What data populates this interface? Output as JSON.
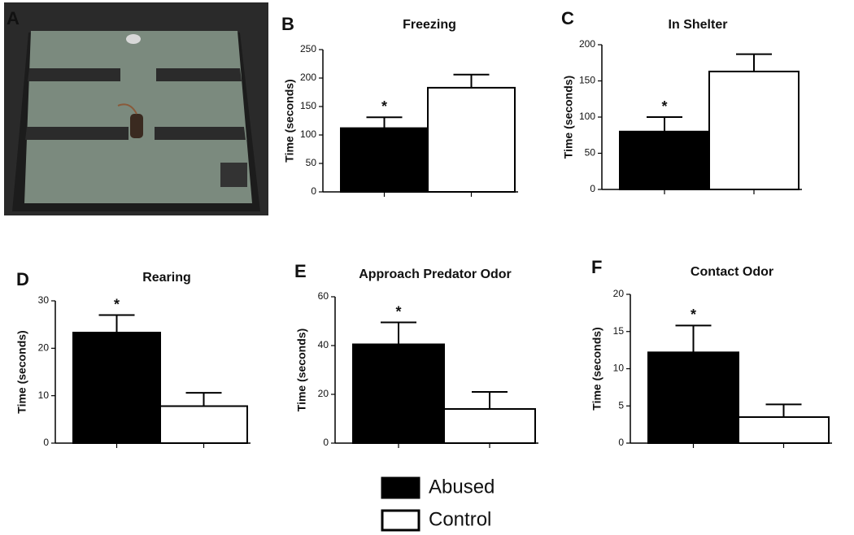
{
  "panel_a": {
    "label": "A"
  },
  "legend": [
    {
      "name": "Abused",
      "color": "#000000"
    },
    {
      "name": "Control",
      "color": "#ffffff"
    }
  ],
  "chart_data": [
    {
      "type": "bar",
      "panel": "B",
      "title": "Freezing",
      "ylabel": "Time (seconds)",
      "values": [
        112,
        183
      ],
      "errors": [
        19,
        23
      ],
      "value_annotations": [
        "*",
        null
      ],
      "ylim": [
        0,
        250
      ],
      "yticks": [
        0,
        50,
        100,
        150,
        200,
        250
      ]
    },
    {
      "type": "bar",
      "panel": "C",
      "title": "In Shelter",
      "ylabel": "Time (seconds)",
      "values": [
        80,
        163
      ],
      "errors": [
        20,
        24
      ],
      "value_annotations": [
        "*",
        null
      ],
      "ylim": [
        0,
        200
      ],
      "yticks": [
        0,
        50,
        100,
        150,
        200
      ]
    },
    {
      "type": "bar",
      "panel": "D",
      "title": "Rearing",
      "ylabel": "Time (seconds)",
      "values": [
        23.3,
        7.8
      ],
      "errors": [
        3.7,
        2.8
      ],
      "value_annotations": [
        "*",
        null
      ],
      "ylim": [
        0,
        30
      ],
      "yticks": [
        0,
        10,
        20,
        30
      ]
    },
    {
      "type": "bar",
      "panel": "E",
      "title": "Approach  Predator Odor",
      "ylabel": "Time (seconds)",
      "values": [
        40.5,
        14
      ],
      "errors": [
        9,
        7
      ],
      "value_annotations": [
        "*",
        null
      ],
      "ylim": [
        0,
        60
      ],
      "yticks": [
        0,
        20,
        40,
        60
      ]
    },
    {
      "type": "bar",
      "panel": "F",
      "title": "Contact Odor",
      "ylabel": "Time (seconds)",
      "values": [
        12.2,
        3.5
      ],
      "errors": [
        3.6,
        1.7
      ],
      "value_annotations": [
        "*",
        null
      ],
      "ylim": [
        0,
        20
      ],
      "yticks": [
        0,
        5,
        10,
        15,
        20
      ]
    }
  ]
}
